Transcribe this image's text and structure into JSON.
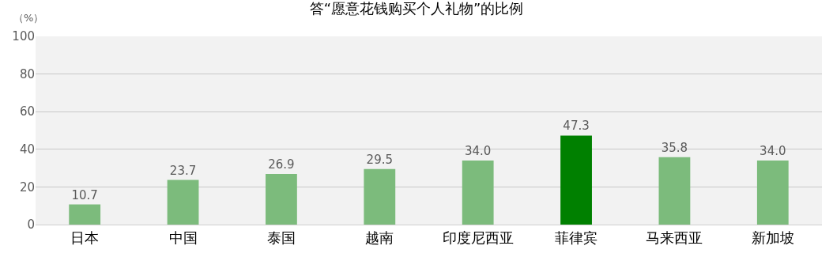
{
  "chart_data": {
    "type": "bar",
    "title": "答“愿意花钱购买个人礼物”的比例",
    "ylabel": "（%）",
    "categories": [
      "日本",
      "中国",
      "泰国",
      "越南",
      "印度尼西亚",
      "菲律宾",
      "马来西亚",
      "新加坡"
    ],
    "values": [
      10.7,
      23.7,
      26.9,
      29.5,
      34.0,
      47.3,
      35.8,
      34.0
    ],
    "value_labels": [
      "10.7",
      "23.7",
      "26.9",
      "29.5",
      "34.0",
      "47.3",
      "35.8",
      "34.0"
    ],
    "colors": [
      "#7cbb7c",
      "#7cbb7c",
      "#7cbb7c",
      "#7cbb7c",
      "#7cbb7c",
      "#008000",
      "#7cbb7c",
      "#7cbb7c"
    ],
    "ylim": [
      0,
      100
    ],
    "yticks": [
      0,
      20,
      40,
      60,
      80,
      100
    ],
    "grid": "y"
  }
}
